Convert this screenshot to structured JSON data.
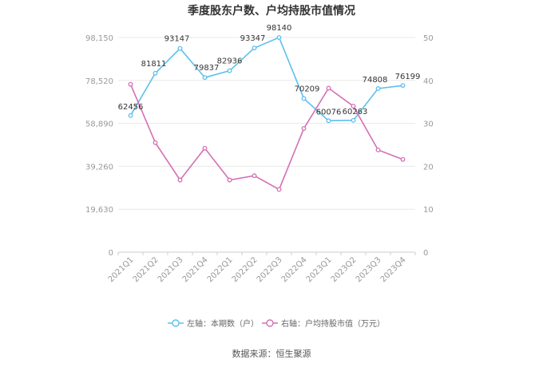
{
  "chart_data": {
    "type": "line",
    "title": "季度股东户数、户均持股市值情况",
    "categories": [
      "2021Q1",
      "2021Q2",
      "2021Q3",
      "2021Q4",
      "2022Q1",
      "2022Q2",
      "2022Q3",
      "2022Q4",
      "2023Q1",
      "2023Q2",
      "2023Q3",
      "2023Q4"
    ],
    "left_axis": {
      "min": 0,
      "max": 98150,
      "ticks": [
        "0",
        "19,630",
        "39,260",
        "58,890",
        "78,520",
        "98,150"
      ]
    },
    "right_axis": {
      "min": 0,
      "max": 50,
      "ticks": [
        "0",
        "10",
        "20",
        "30",
        "40",
        "50"
      ]
    },
    "series": [
      {
        "name": "左轴：本期数（户）",
        "axis": "left",
        "color": "#5bc0eb",
        "values": [
          62456,
          81811,
          93147,
          79837,
          82936,
          93347,
          98140,
          70209,
          60076,
          60263,
          74808,
          76199
        ],
        "labels": [
          "62456",
          "81811",
          "93147",
          "79837",
          "82936",
          "93347",
          "98140",
          "70209",
          "60076",
          "60263",
          "74808",
          "76199"
        ]
      },
      {
        "name": "右轴：户均持股市值（万元）",
        "axis": "right",
        "color": "#d46fb5",
        "values": [
          39.1,
          25.5,
          16.8,
          24.2,
          16.8,
          17.8,
          14.6,
          28.8,
          38.2,
          34.0,
          23.8,
          21.6
        ]
      }
    ],
    "grid": true,
    "legend": "bottom"
  },
  "source_text": "数据来源：恒生聚源"
}
